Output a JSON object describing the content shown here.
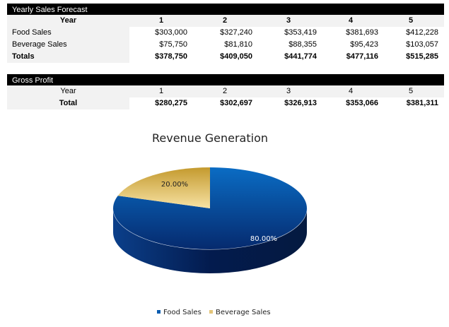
{
  "sales": {
    "title": "Yearly Sales Forecast",
    "year_label": "Year",
    "years": [
      "1",
      "2",
      "3",
      "4",
      "5"
    ],
    "rows": [
      {
        "label": "Food Sales",
        "values": [
          "$303,000",
          "$327,240",
          "$353,419",
          "$381,693",
          "$412,228"
        ]
      },
      {
        "label": "Beverage Sales",
        "values": [
          "$75,750",
          "$81,810",
          "$88,355",
          "$95,423",
          "$103,057"
        ]
      },
      {
        "label": "Totals",
        "values": [
          "$378,750",
          "$409,050",
          "$441,774",
          "$477,116",
          "$515,285"
        ]
      }
    ]
  },
  "profit": {
    "title": "Gross Profit",
    "year_label": "Year",
    "years": [
      "1",
      "2",
      "3",
      "4",
      "5"
    ],
    "total_label": "Total",
    "values": [
      "$280,275",
      "$302,697",
      "$326,913",
      "$353,066",
      "$381,311"
    ]
  },
  "chart_data": {
    "type": "pie",
    "title": "Revenue Generation",
    "style": "3d",
    "categories": [
      "Food Sales",
      "Beverage Sales"
    ],
    "values": [
      80.0,
      20.0
    ],
    "data_labels": [
      "80.00%",
      "20.00%"
    ],
    "colors": [
      "#0a5db0",
      "#e3c57a"
    ],
    "legend": "bottom"
  }
}
